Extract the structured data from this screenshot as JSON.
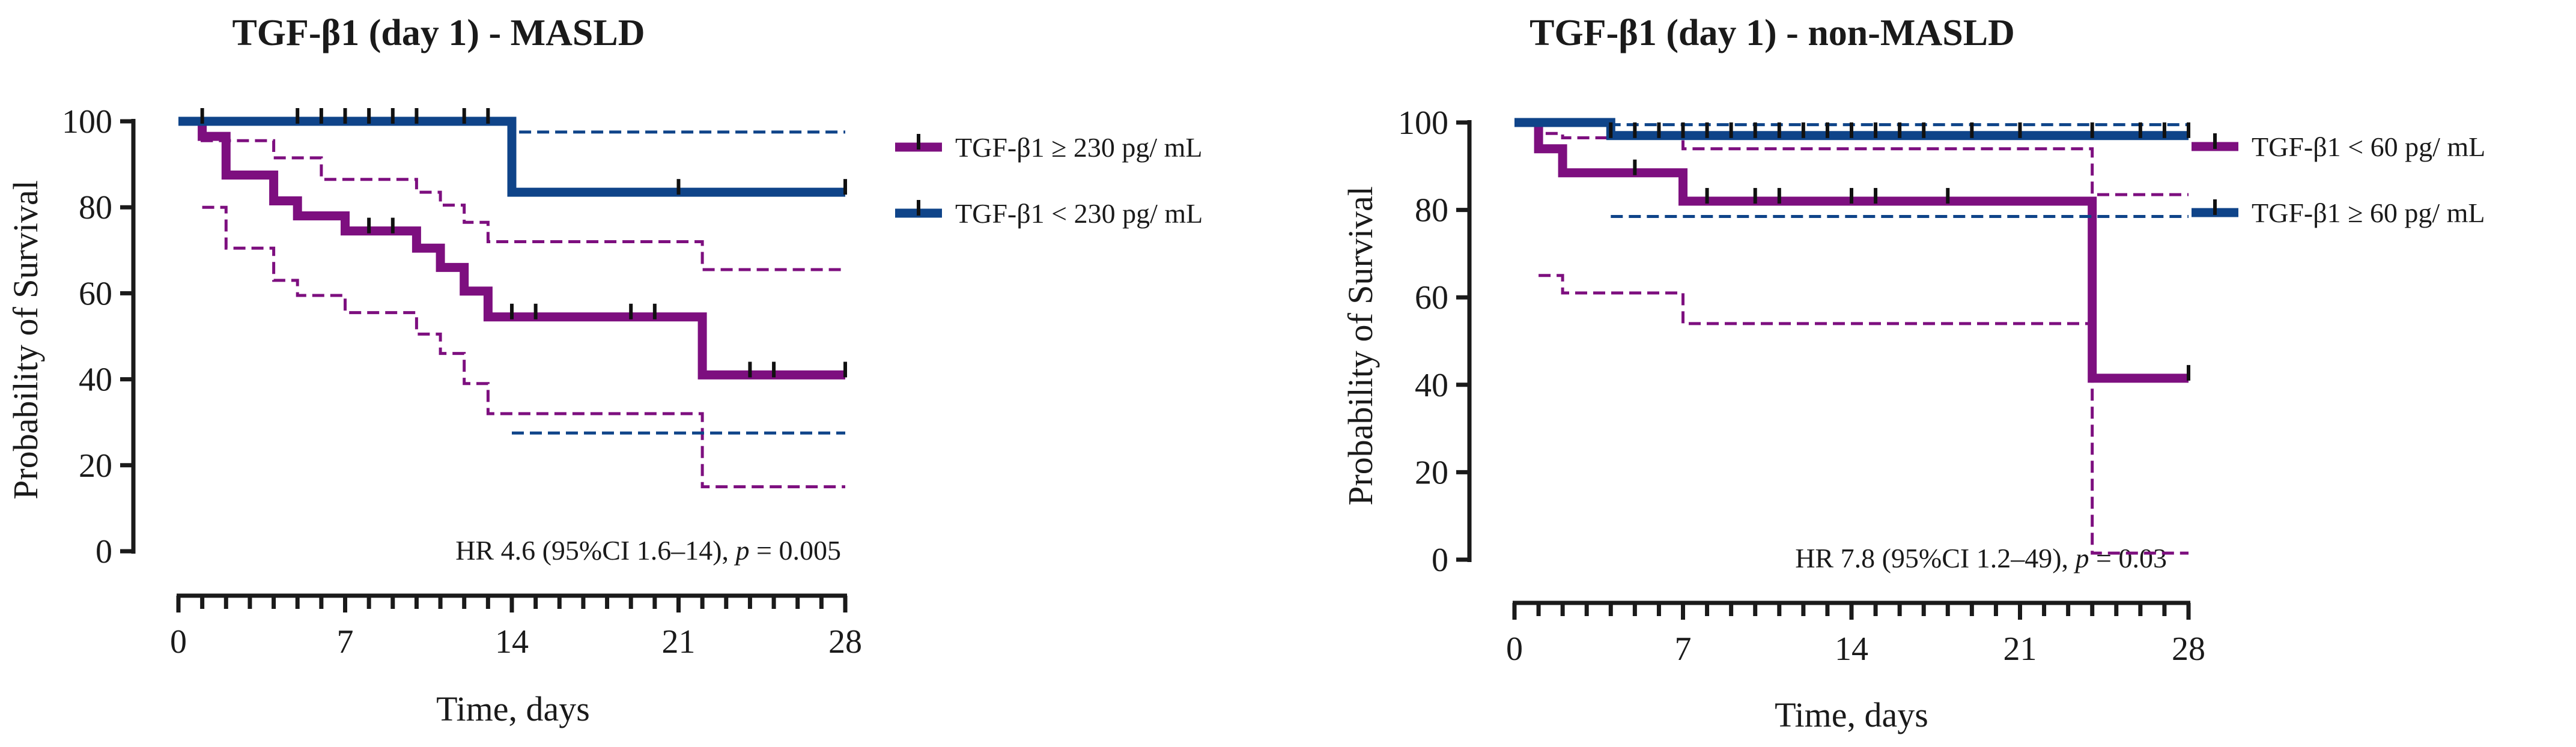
{
  "colors": {
    "purple": "#7d0f7f",
    "blue": "#0f4489",
    "axis": "#1a1a1a"
  },
  "chart_data": [
    {
      "type": "line",
      "subtype": "kaplan-meier",
      "title": "TGF-β1 (day 1) - MASLD",
      "xlabel": "Time, days",
      "ylabel": "Probability of Survival",
      "xlim": [
        0,
        28
      ],
      "ylim": [
        0,
        100
      ],
      "xticks": [
        0,
        7,
        14,
        21,
        28
      ],
      "yticks": [
        0,
        20,
        40,
        60,
        80,
        100
      ],
      "legend_position": "right",
      "annotation": {
        "prefix": "HR 4.6 (95%CI 1.6–14), ",
        "p_label": "p",
        "p_value": " = 0.005"
      },
      "series": [
        {
          "name": "TGF-β1 ≥ 230 pg/ mL",
          "color": "purple",
          "x": [
            0,
            1,
            2,
            4,
            5,
            7,
            10,
            11,
            12,
            13,
            22,
            28
          ],
          "y": [
            100,
            96.5,
            87.5,
            81.5,
            78,
            74.5,
            70.5,
            66,
            60.5,
            54.5,
            41,
            41
          ],
          "censor_x": [
            8,
            9,
            14,
            15,
            19,
            20,
            24,
            25,
            28
          ],
          "ci_upper_x": [
            1,
            4,
            6,
            10,
            11,
            12,
            13,
            22,
            28
          ],
          "ci_upper_y": [
            95.5,
            91.5,
            86.5,
            83.5,
            80.5,
            76.5,
            72,
            65.5,
            65.5
          ],
          "ci_lower_x": [
            1,
            2,
            4,
            5,
            7,
            10,
            11,
            12,
            13,
            22,
            28
          ],
          "ci_lower_y": [
            80,
            70.5,
            63,
            59.5,
            55.5,
            50.5,
            46,
            39,
            32,
            15,
            15
          ]
        },
        {
          "name": "TGF-β1 < 230 pg/ mL",
          "color": "blue",
          "x": [
            0,
            14,
            28
          ],
          "y": [
            100,
            83.5,
            83.5
          ],
          "censor_x": [
            1,
            5,
            6,
            7,
            8,
            9,
            10,
            12,
            13,
            21,
            28
          ],
          "ci_upper_x": [
            14,
            28
          ],
          "ci_upper_y": [
            97.5,
            97.5
          ],
          "ci_lower_x": [
            14,
            28
          ],
          "ci_lower_y": [
            27.5,
            27.5
          ]
        }
      ]
    },
    {
      "type": "line",
      "subtype": "kaplan-meier",
      "title": "TGF-β1 (day 1) - non-MASLD",
      "xlabel": "Time, days",
      "ylabel": "Probability of Survival",
      "xlim": [
        0,
        28
      ],
      "ylim": [
        0,
        100
      ],
      "xticks": [
        0,
        7,
        14,
        21,
        28
      ],
      "yticks": [
        0,
        20,
        40,
        60,
        80,
        100
      ],
      "legend_position": "right",
      "annotation": {
        "prefix": "HR 7.8 (95%CI 1.2–49), ",
        "p_label": "p",
        "p_value": " = 0.03"
      },
      "series": [
        {
          "name": "TGF-β1 < 60 pg/ mL",
          "color": "purple",
          "x": [
            0,
            1,
            2,
            7,
            24,
            28
          ],
          "y": [
            100,
            94,
            88.5,
            82,
            41.5,
            41.5
          ],
          "censor_x": [
            5,
            8,
            10,
            11,
            14,
            15,
            18,
            28
          ],
          "ci_upper_x": [
            1,
            2,
            7,
            24,
            28
          ],
          "ci_upper_y": [
            97.5,
            96.5,
            94,
            83.5,
            83.5
          ],
          "ci_lower_x": [
            1,
            2,
            7,
            24,
            28
          ],
          "ci_lower_y": [
            65,
            61,
            54,
            1.5,
            1.5
          ]
        },
        {
          "name": "TGF-β1 ≥ 60 pg/ mL",
          "color": "blue",
          "x": [
            0,
            4,
            28
          ],
          "y": [
            100,
            97,
            97
          ],
          "censor_x": [
            4,
            5,
            6,
            7,
            8,
            9,
            10,
            11,
            12,
            13,
            14,
            15,
            16,
            17,
            19,
            21,
            24,
            26,
            27,
            28
          ],
          "ci_upper_x": [
            4,
            28
          ],
          "ci_upper_y": [
            99.5,
            99.5
          ],
          "ci_lower_x": [
            4,
            28
          ],
          "ci_lower_y": [
            78.5,
            78.5
          ]
        }
      ]
    }
  ]
}
